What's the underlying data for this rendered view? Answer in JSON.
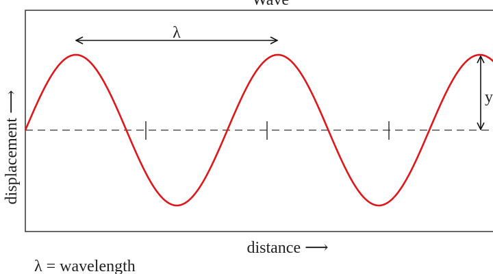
{
  "title": "Wave",
  "labels": {
    "wavelength_symbol": "λ",
    "amplitude_symbol": "y",
    "y_axis": "displacement ⟶",
    "x_axis": "distance ⟶",
    "legend": "λ = wavelength"
  }
}
